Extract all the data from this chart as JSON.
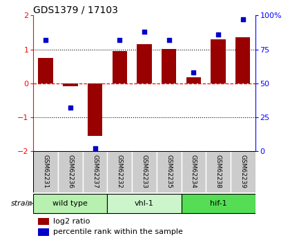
{
  "title": "GDS1379 / 17103",
  "samples": [
    "GSM62231",
    "GSM62236",
    "GSM62237",
    "GSM62232",
    "GSM62233",
    "GSM62235",
    "GSM62234",
    "GSM62238",
    "GSM62239"
  ],
  "log2_ratio": [
    0.75,
    -0.08,
    -1.55,
    0.95,
    1.15,
    1.02,
    0.18,
    1.3,
    1.35
  ],
  "percentile_rank": [
    82,
    32,
    2,
    82,
    88,
    82,
    58,
    86,
    97
  ],
  "groups": [
    {
      "label": "wild type",
      "start": 0,
      "end": 3,
      "color": "#b8f0b0"
    },
    {
      "label": "vhl-1",
      "start": 3,
      "end": 6,
      "color": "#ccf5cc"
    },
    {
      "label": "hif-1",
      "start": 6,
      "end": 9,
      "color": "#55dd55"
    }
  ],
  "ylim_left": [
    -2,
    2
  ],
  "ylim_right": [
    0,
    100
  ],
  "bar_color": "#990000",
  "dot_color": "#0000cc",
  "zero_line_color": "#ff0000",
  "grid_color": "#000000",
  "background_color": "#ffffff",
  "sample_box_color": "#cccccc",
  "legend_items": [
    "log2 ratio",
    "percentile rank within the sample"
  ]
}
